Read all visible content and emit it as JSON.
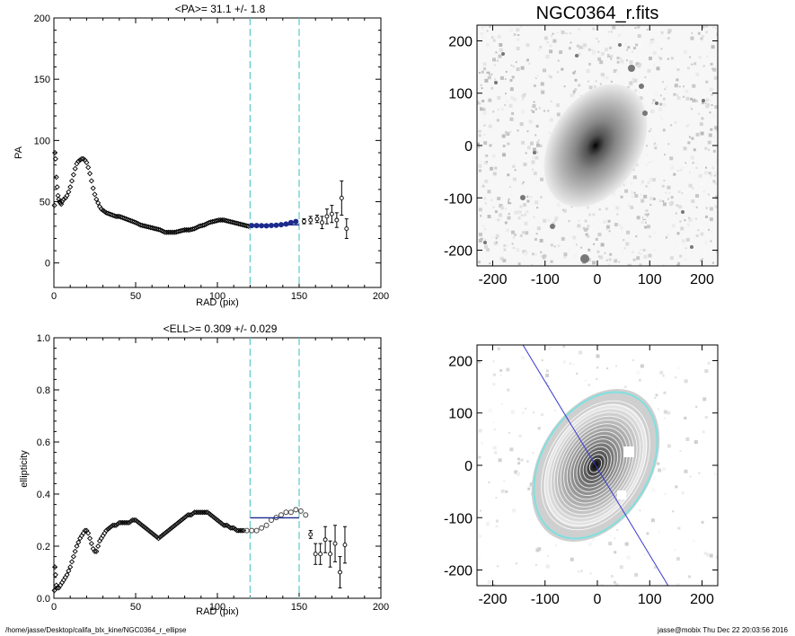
{
  "footer": {
    "path": "/home/jasse/Desktop/califa_blx_kine/NGC0364_r_ellipse",
    "stamp": "jasse@mobix  Thu Dec 22 20:03:56 2016"
  },
  "colors": {
    "profile": "#000000",
    "fit_points": "#1c2a8c",
    "fit_line": "#1c2a8c",
    "range_lines": "#5ec9c9",
    "contours": "#ffffff",
    "outer_contour": "#7fe0e0",
    "pa_line": "#3a3ad0"
  },
  "chart_data": [
    {
      "type": "scatter",
      "id": "pa",
      "title": "<PA>=  31.1 +/-   1.8",
      "xlabel": "RAD (pix)",
      "ylabel": "PA",
      "xlim": [
        0,
        200
      ],
      "ylim": [
        -20,
        200
      ],
      "xticks": [
        "0",
        "50",
        "100",
        "150",
        "200"
      ],
      "yticks": [
        "0",
        "50",
        "100",
        "150",
        "200"
      ],
      "vlines": [
        120,
        150
      ],
      "fit": {
        "x": [
          120,
          150
        ],
        "y": 31.1
      },
      "fit_points": {
        "x": [
          121,
          124,
          127,
          130,
          133,
          136,
          139,
          142,
          145,
          148
        ],
        "y": [
          30.5,
          30.5,
          30.4,
          30.3,
          30.6,
          30.8,
          31.2,
          31.8,
          33.0,
          33.8
        ]
      },
      "profile": {
        "x": [
          0.3,
          0.6,
          1,
          1.5,
          2,
          2.5,
          3,
          3.5,
          4,
          4.5,
          5,
          6,
          7,
          8,
          9,
          10,
          11,
          12,
          13,
          14,
          15,
          16,
          17,
          18,
          19,
          20,
          21,
          22,
          23,
          24,
          25,
          26,
          27,
          28,
          29,
          30,
          32,
          34,
          36,
          38,
          40,
          42,
          44,
          46,
          48,
          50,
          53,
          56,
          59,
          62,
          65,
          68,
          71,
          74,
          77,
          80,
          83,
          86,
          89,
          92,
          95,
          98,
          101,
          104,
          107,
          110,
          113,
          116,
          119
        ],
        "y": [
          47,
          90,
          85,
          70,
          62,
          55,
          52,
          50,
          49,
          48,
          50,
          52,
          53,
          55,
          58,
          62,
          67,
          72,
          77,
          81,
          83,
          84,
          85,
          85,
          84,
          82,
          78,
          73,
          67,
          61,
          56,
          52,
          49,
          46,
          44,
          43,
          41,
          40,
          39,
          38,
          38,
          37,
          36,
          35,
          34,
          33,
          31,
          30,
          29,
          28,
          27,
          25,
          25,
          25,
          26,
          27,
          27,
          28,
          30,
          31,
          33,
          34,
          35,
          35,
          34,
          33,
          32,
          31,
          30
        ]
      },
      "errorbar_points": {
        "x": [
          153,
          157,
          161,
          164,
          167,
          170,
          173,
          176,
          179
        ],
        "y": [
          34,
          35,
          36,
          33,
          38,
          40,
          35,
          53,
          28
        ],
        "err": [
          2,
          3,
          3,
          5,
          6,
          7,
          6,
          14,
          8
        ]
      }
    },
    {
      "type": "scatter",
      "id": "ell",
      "title": "<ELL>= 0.309 +/-  0.029",
      "xlabel": "RAD (pix)",
      "ylabel": "ellipticity",
      "xlim": [
        0,
        200
      ],
      "ylim": [
        0,
        1
      ],
      "xticks": [
        "0",
        "50",
        "100",
        "150",
        "200"
      ],
      "yticks": [
        "0.0",
        "0.2",
        "0.4",
        "0.6",
        "0.8",
        "1.0"
      ],
      "vlines": [
        120,
        150
      ],
      "fit": {
        "x": [
          120,
          150
        ],
        "y": 0.309
      },
      "profile": {
        "x": [
          0.3,
          0.6,
          1,
          1.5,
          2,
          3,
          4,
          5,
          6,
          8,
          10,
          12,
          14,
          16,
          18,
          19,
          20,
          21,
          22,
          23,
          24,
          25,
          26,
          27,
          28,
          30,
          32,
          34,
          36,
          38,
          40,
          42,
          44,
          46,
          48,
          50,
          52,
          54,
          56,
          58,
          60,
          62,
          64,
          66,
          68,
          70,
          72,
          74,
          76,
          78,
          80,
          82,
          84,
          86,
          88,
          90,
          92,
          94,
          96,
          98,
          100,
          102,
          104,
          106,
          108,
          110,
          112,
          114,
          116
        ],
        "y": [
          0.03,
          0.12,
          0.09,
          0.05,
          0.04,
          0.04,
          0.05,
          0.06,
          0.07,
          0.09,
          0.12,
          0.16,
          0.2,
          0.23,
          0.25,
          0.26,
          0.26,
          0.25,
          0.23,
          0.21,
          0.19,
          0.18,
          0.18,
          0.2,
          0.22,
          0.24,
          0.26,
          0.27,
          0.28,
          0.28,
          0.29,
          0.29,
          0.29,
          0.29,
          0.3,
          0.3,
          0.29,
          0.28,
          0.27,
          0.26,
          0.25,
          0.24,
          0.23,
          0.24,
          0.25,
          0.26,
          0.27,
          0.28,
          0.29,
          0.3,
          0.31,
          0.32,
          0.32,
          0.33,
          0.33,
          0.33,
          0.33,
          0.33,
          0.32,
          0.31,
          0.3,
          0.29,
          0.28,
          0.28,
          0.27,
          0.27,
          0.26,
          0.26,
          0.26
        ]
      },
      "fit_points": {
        "x": [
          118,
          121,
          124,
          127,
          130,
          133,
          136,
          139,
          142,
          145,
          148,
          151,
          154
        ],
        "y": [
          0.26,
          0.26,
          0.26,
          0.27,
          0.28,
          0.3,
          0.31,
          0.32,
          0.33,
          0.33,
          0.34,
          0.335,
          0.32
        ]
      },
      "errorbar_points": {
        "x": [
          157,
          160,
          163,
          166,
          169,
          172,
          175,
          178
        ],
        "y": [
          0.245,
          0.17,
          0.17,
          0.225,
          0.17,
          0.21,
          0.1,
          0.205
        ],
        "err": [
          0.015,
          0.04,
          0.04,
          0.05,
          0.05,
          0.07,
          0.06,
          0.07
        ]
      }
    },
    {
      "type": "heatmap",
      "id": "image",
      "title": "NGC0364_r.fits",
      "xlim": [
        -230,
        230
      ],
      "ylim": [
        -230,
        230
      ],
      "xticks": [
        "-200",
        "-100",
        "0",
        "100",
        "200"
      ],
      "yticks": [
        "-200",
        "-100",
        "0",
        "100",
        "200"
      ]
    },
    {
      "type": "heatmap",
      "id": "contours",
      "title": "",
      "xlim": [
        -230,
        230
      ],
      "ylim": [
        -230,
        230
      ],
      "xticks": [
        "-200",
        "-100",
        "0",
        "100",
        "200"
      ],
      "yticks": [
        "-200",
        "-100",
        "0",
        "100",
        "200"
      ],
      "pa_line_deg": 31.1
    }
  ]
}
